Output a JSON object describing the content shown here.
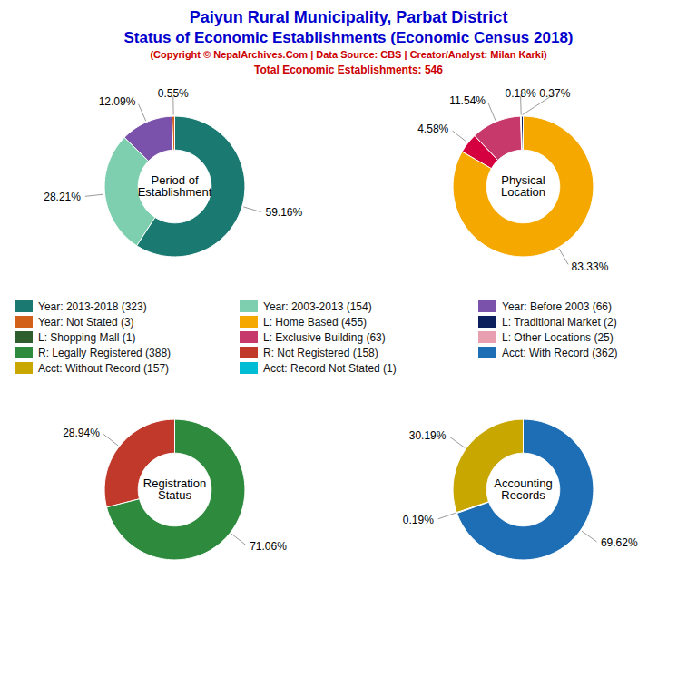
{
  "title": [
    "Paiyun Rural Municipality, Parbat District",
    "Status of Economic Establishments (Economic Census 2018)"
  ],
  "subtitle": [
    "(Copyright © NepalArchives.Com | Data Source: CBS | Creator/Analyst: Milan Karki)",
    "Total Economic Establishments: 546"
  ],
  "title_color": "#0000CC",
  "subtitle_color": "#CC0000",
  "chart_data": [
    {
      "type": "pie",
      "title": "Period of\nEstablishment",
      "values": [
        59.16,
        28.21,
        12.09,
        0.55
      ],
      "value_labels": [
        "59.16%",
        "28.21%",
        "12.09%",
        "0.55%"
      ],
      "colors": [
        "#1a7a72",
        "#7ecfb0",
        "#7b52ab",
        "#d2601a"
      ],
      "data_labels": true
    },
    {
      "type": "pie",
      "title": "Physical\nLocation",
      "values": [
        83.33,
        4.58,
        11.54,
        0.18,
        0.37
      ],
      "value_labels": [
        "83.33%",
        "4.58%",
        "11.54%",
        "0.18%",
        "0.37%"
      ],
      "colors": [
        "#f5a800",
        "#d4003f",
        "#c8396b",
        "#888888",
        "#0a1f5c"
      ],
      "data_labels": true
    },
    {
      "type": "pie",
      "title": "Registration\nStatus",
      "values": [
        71.06,
        28.94
      ],
      "value_labels": [
        "71.06%",
        "28.94%"
      ],
      "colors": [
        "#2e8b3e",
        "#c0392b"
      ],
      "data_labels": true
    },
    {
      "type": "pie",
      "title": "Accounting\nRecords",
      "values": [
        69.62,
        0.19,
        30.19
      ],
      "value_labels": [
        "69.62%",
        "0.19%",
        "30.19%"
      ],
      "colors": [
        "#1e6eb5",
        "#00bcd4",
        "#c8a800"
      ],
      "data_labels": true
    }
  ],
  "legend_items": [
    {
      "label": "Year: 2013-2018 (323)",
      "color": "#1a7a72"
    },
    {
      "label": "Year: 2003-2013 (154)",
      "color": "#7ecfb0"
    },
    {
      "label": "Year: Before 2003 (66)",
      "color": "#7b52ab"
    },
    {
      "label": "Year: Not Stated (3)",
      "color": "#d2601a"
    },
    {
      "label": "L: Home Based (455)",
      "color": "#f5a800"
    },
    {
      "label": "L: Traditional Market (2)",
      "color": "#0a1f5c"
    },
    {
      "label": "L: Shopping Mall (1)",
      "color": "#2e5e2e"
    },
    {
      "label": "L: Exclusive Building (63)",
      "color": "#c8396b"
    },
    {
      "label": "L: Other Locations (25)",
      "color": "#e8a0b0"
    },
    {
      "label": "R: Legally Registered (388)",
      "color": "#2e8b3e"
    },
    {
      "label": "R: Not Registered (158)",
      "color": "#c0392b"
    },
    {
      "label": "Acct: With Record (362)",
      "color": "#1e6eb5"
    },
    {
      "label": "Acct: Without Record (157)",
      "color": "#c8a800"
    },
    {
      "label": "Acct: Record Not Stated (1)",
      "color": "#00bcd4"
    }
  ]
}
